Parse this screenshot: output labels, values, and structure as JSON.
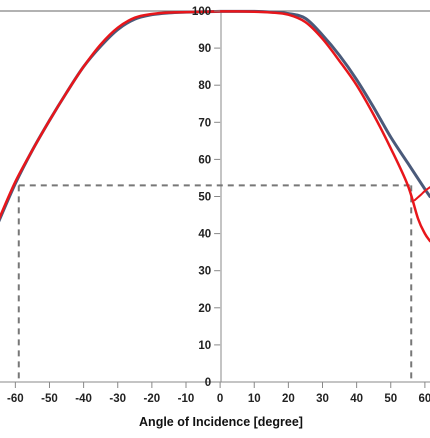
{
  "chart_data": {
    "type": "line",
    "xlabel": "Angle of Incidence [degree]",
    "ylabel": "",
    "xlim": [
      -64.5,
      61.5
    ],
    "ylim": [
      0,
      100
    ],
    "x_ticks": [
      -60,
      -50,
      -40,
      -30,
      -20,
      -10,
      0,
      10,
      20,
      30,
      40,
      50,
      60
    ],
    "x_tick_labels": [
      "-60",
      "-50",
      "-40",
      "-30",
      "-20",
      "-10",
      "0",
      "10",
      "20",
      "30",
      "40",
      "50",
      "60"
    ],
    "y_ticks": [
      0,
      10,
      20,
      30,
      40,
      50,
      60,
      70,
      80,
      90,
      100
    ],
    "y_tick_labels": [
      "0",
      "10",
      "20",
      "30",
      "40",
      "50",
      "60",
      "70",
      "80",
      "90",
      "100"
    ],
    "grid": false,
    "colors": {
      "series_1": "#4a5a7a",
      "series_2": "#e8161b",
      "reference": "#777777"
    },
    "series": [
      {
        "x": [
          -65,
          -60,
          -55,
          -50,
          -45,
          -40,
          -35,
          -30,
          -25,
          -20,
          -15,
          -10,
          -5,
          0,
          5,
          10,
          15,
          20,
          25,
          30,
          35,
          40,
          45,
          50,
          55,
          60,
          61.5
        ],
        "values": [
          43,
          53.5,
          62.5,
          70.5,
          78,
          85,
          90.5,
          95,
          97.8,
          99,
          99.5,
          99.7,
          99.8,
          99.9,
          99.9,
          99.9,
          99.7,
          99.3,
          98,
          93.5,
          88,
          81.5,
          74,
          66,
          59,
          52,
          50
        ]
      },
      {
        "x": [
          -65,
          -60,
          -55,
          -50,
          -45,
          -40,
          -35,
          -30,
          -25,
          -20,
          -15,
          -10,
          -5,
          0,
          5,
          10,
          15,
          20,
          25,
          30,
          35,
          40,
          45,
          50,
          55,
          58,
          60,
          61.5
        ],
        "values": [
          43.5,
          54,
          62.5,
          70.5,
          78,
          85,
          91,
          95.5,
          98.2,
          99.2,
          99.6,
          99.7,
          99.8,
          99.9,
          99.9,
          99.8,
          99.6,
          99,
          97,
          92.5,
          86.5,
          80,
          72,
          63,
          53,
          44,
          40,
          38
        ]
      },
      {
        "x": [
          57,
          58,
          59,
          60,
          61.5
        ],
        "values": [
          49,
          49.8,
          50.6,
          51.5,
          52.5
        ]
      }
    ],
    "reference_lines": {
      "y": 53,
      "x": [
        -59,
        56
      ]
    }
  }
}
